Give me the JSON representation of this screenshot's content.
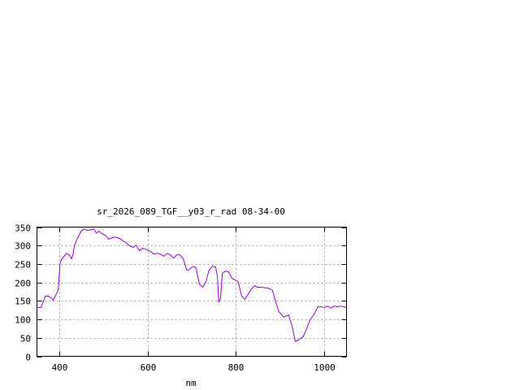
{
  "chart_data": {
    "type": "line",
    "title": "sr_2026_089_TGF__y03_r_rad 08-34-00",
    "xlabel": "nm",
    "ylabel": "",
    "xlim": [
      350,
      1050
    ],
    "ylim": [
      0,
      350
    ],
    "xticks": [
      400,
      600,
      800,
      1000
    ],
    "yticks": [
      0,
      50,
      100,
      150,
      200,
      250,
      300,
      350
    ],
    "grid": true,
    "line_color": "#9400d3",
    "series": [
      {
        "x": [
          350,
          359,
          369,
          376,
          382,
          387,
          394,
          398,
          402,
          405,
          417,
          424,
          428,
          431,
          435,
          442,
          450,
          457,
          464,
          472,
          479,
          484,
          490,
          497,
          505,
          512,
          519,
          527,
          538,
          545,
          552,
          560,
          567,
          574,
          582,
          589,
          600,
          607,
          615,
          622,
          629,
          637,
          644,
          651,
          659,
          666,
          673,
          681,
          688,
          692,
          699,
          706,
          710,
          717,
          725,
          732,
          739,
          747,
          754,
          758,
          761,
          765,
          769,
          776,
          783,
          791,
          798,
          805,
          813,
          820,
          827,
          835,
          842,
          849,
          857,
          871,
          882,
          890,
          897,
          908,
          919,
          927,
          934,
          941,
          952,
          960,
          967,
          978,
          985,
          993,
          1000,
          1007,
          1015,
          1022,
          1029,
          1037,
          1044,
          1050
        ],
        "y": [
          132,
          132,
          163,
          163,
          158,
          152,
          169,
          178,
          249,
          262,
          279,
          273,
          264,
          273,
          301,
          321,
          339,
          345,
          341,
          343,
          345,
          334,
          339,
          332,
          328,
          317,
          321,
          323,
          319,
          312,
          308,
          299,
          295,
          301,
          286,
          293,
          288,
          284,
          277,
          279,
          277,
          271,
          279,
          275,
          266,
          275,
          275,
          264,
          235,
          233,
          240,
          244,
          238,
          196,
          187,
          202,
          233,
          244,
          242,
          216,
          147,
          156,
          224,
          231,
          229,
          211,
          207,
          202,
          163,
          154,
          167,
          183,
          191,
          187,
          187,
          185,
          180,
          147,
          121,
          106,
          112,
          81,
          40,
          44,
          53,
          75,
          97,
          117,
          134,
          134,
          132,
          136,
          130,
          136,
          134,
          136,
          134,
          132
        ]
      }
    ]
  }
}
